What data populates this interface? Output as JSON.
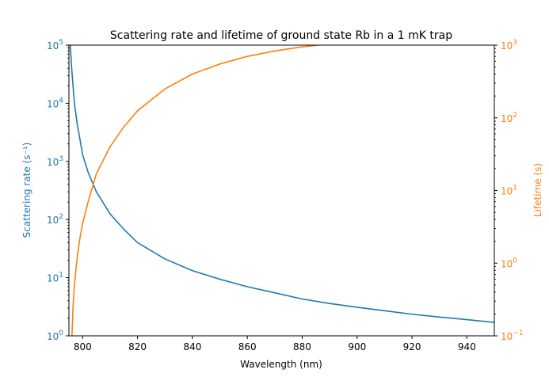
{
  "chart_data": {
    "type": "line",
    "title": "Scattering rate and lifetime of ground state Rb in a 1 mK trap",
    "xlabel": "Wavelength (nm)",
    "ylabel_left": "Scattering rate (s⁻¹)",
    "ylabel_right": "Lifetime (s)",
    "xlim": [
      795,
      950
    ],
    "ylim_left": [
      1,
      100000
    ],
    "ylim_right": [
      0.1,
      1000
    ],
    "yscale_left": "log",
    "yscale_right": "log",
    "x_ticks": [
      "800",
      "820",
      "840",
      "860",
      "880",
      "900",
      "920",
      "940"
    ],
    "y_ticks_left": [
      {
        "base": "10",
        "exp": "0"
      },
      {
        "base": "10",
        "exp": "1"
      },
      {
        "base": "10",
        "exp": "2"
      },
      {
        "base": "10",
        "exp": "3"
      },
      {
        "base": "10",
        "exp": "4"
      },
      {
        "base": "10",
        "exp": "5"
      }
    ],
    "y_ticks_right": [
      {
        "base": "10",
        "exp": "−1"
      },
      {
        "base": "10",
        "exp": "0"
      },
      {
        "base": "10",
        "exp": "1"
      },
      {
        "base": "10",
        "exp": "2"
      },
      {
        "base": "10",
        "exp": "3"
      }
    ],
    "colors": {
      "scattering": "#1f77b4",
      "lifetime": "#ff7f0e"
    },
    "grid": false,
    "series": [
      {
        "axis": "left",
        "color": "#1f77b4",
        "x": [
          795.5,
          796,
          797,
          798,
          800,
          802,
          805,
          810,
          815,
          820,
          830,
          840,
          850,
          860,
          870,
          880,
          890,
          900,
          910,
          920,
          930,
          940,
          950
        ],
        "values": [
          100000,
          40000,
          10000,
          4500,
          1300,
          650,
          300,
          125,
          68,
          40,
          21,
          13.2,
          9.4,
          7.0,
          5.5,
          4.3,
          3.6,
          3.1,
          2.7,
          2.35,
          2.1,
          1.9,
          1.7
        ]
      },
      {
        "axis": "right",
        "color": "#ff7f0e",
        "x": [
          796.1,
          796.5,
          797,
          798,
          799,
          800,
          802,
          805,
          810,
          815,
          820,
          830,
          840,
          850,
          860,
          870,
          880,
          886
        ],
        "values": [
          0.1,
          0.25,
          0.5,
          1.2,
          2.2,
          3.5,
          7,
          17,
          40,
          75,
          125,
          250,
          400,
          550,
          700,
          830,
          950,
          1000
        ]
      }
    ]
  }
}
